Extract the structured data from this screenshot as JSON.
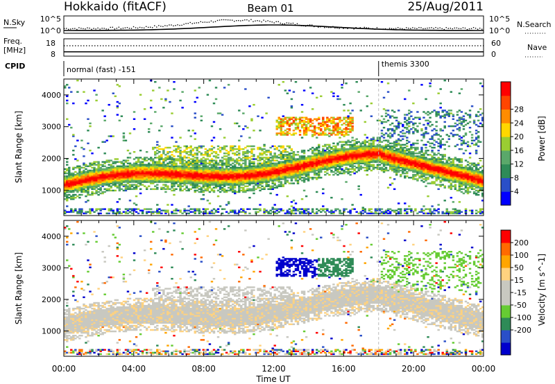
{
  "header": {
    "station": "Hokkaido (fitACF)",
    "beam": "Beam 01",
    "date": "25/Aug/2011"
  },
  "noise_panel": {
    "left_label": "N.Sky",
    "right_label": "N.Search",
    "left_ticks": [
      "10^5",
      "10^0"
    ],
    "right_ticks": [
      "10^5",
      "10^0"
    ]
  },
  "freq_panel": {
    "left_label_1": "Freq.",
    "left_label_2": "[MHz]",
    "right_label": "Nave",
    "left_ticks": [
      "18",
      "8"
    ],
    "right_ticks": [
      "60",
      "0"
    ],
    "freq_mhz": 10.5
  },
  "cpid": {
    "label": "CPID",
    "segments": [
      {
        "start_hour": 0,
        "text": "normal (fast) -151"
      },
      {
        "start_hour": 18.0,
        "text": "themis 3300"
      }
    ]
  },
  "colors": {
    "power": [
      "#0000ff",
      "#2a4fc8",
      "#2e8b57",
      "#5aa86a",
      "#9acd32",
      "#ffd700",
      "#ff8c00",
      "#ff4500",
      "#ff0000"
    ],
    "velocity": [
      "#ff0000",
      "#ff6a00",
      "#ffa500",
      "#ffd27f",
      "#c8c8c0",
      "#c8c8c0",
      "#66cc33",
      "#2e8b57",
      "#2a4fc8",
      "#0000cc"
    ]
  },
  "chart_data": [
    {
      "type": "heatmap",
      "name": "power",
      "ylabel": "Slant Range [km]",
      "colorbar_label": "Power [dB]",
      "colorbar_ticks": [
        "4",
        "8",
        "12",
        "16",
        "20",
        "24",
        "28"
      ],
      "ylim": [
        200,
        4500
      ],
      "y_ticks": [
        "1000",
        "2000",
        "3000",
        "4000"
      ],
      "x_ticks": [
        "00:00",
        "04:00",
        "08:00",
        "12:00",
        "16:00",
        "20:00",
        "00:00"
      ],
      "xlabel": "Time UT",
      "xlim_hours": [
        0,
        24
      ]
    },
    {
      "type": "heatmap",
      "name": "velocity",
      "ylabel": "Slant Range [km]",
      "colorbar_label": "Velocity [m s^-1]",
      "colorbar_ticks": [
        "200",
        "100",
        "50",
        "15",
        "-15",
        "-50",
        "-100",
        "-200"
      ],
      "ylim": [
        200,
        4500
      ],
      "y_ticks": [
        "1000",
        "2000",
        "3000",
        "4000"
      ],
      "x_ticks": [
        "00:00",
        "04:00",
        "08:00",
        "12:00",
        "16:00",
        "20:00",
        "00:00"
      ],
      "xlabel": "Time UT",
      "xlim_hours": [
        0,
        24
      ]
    }
  ]
}
